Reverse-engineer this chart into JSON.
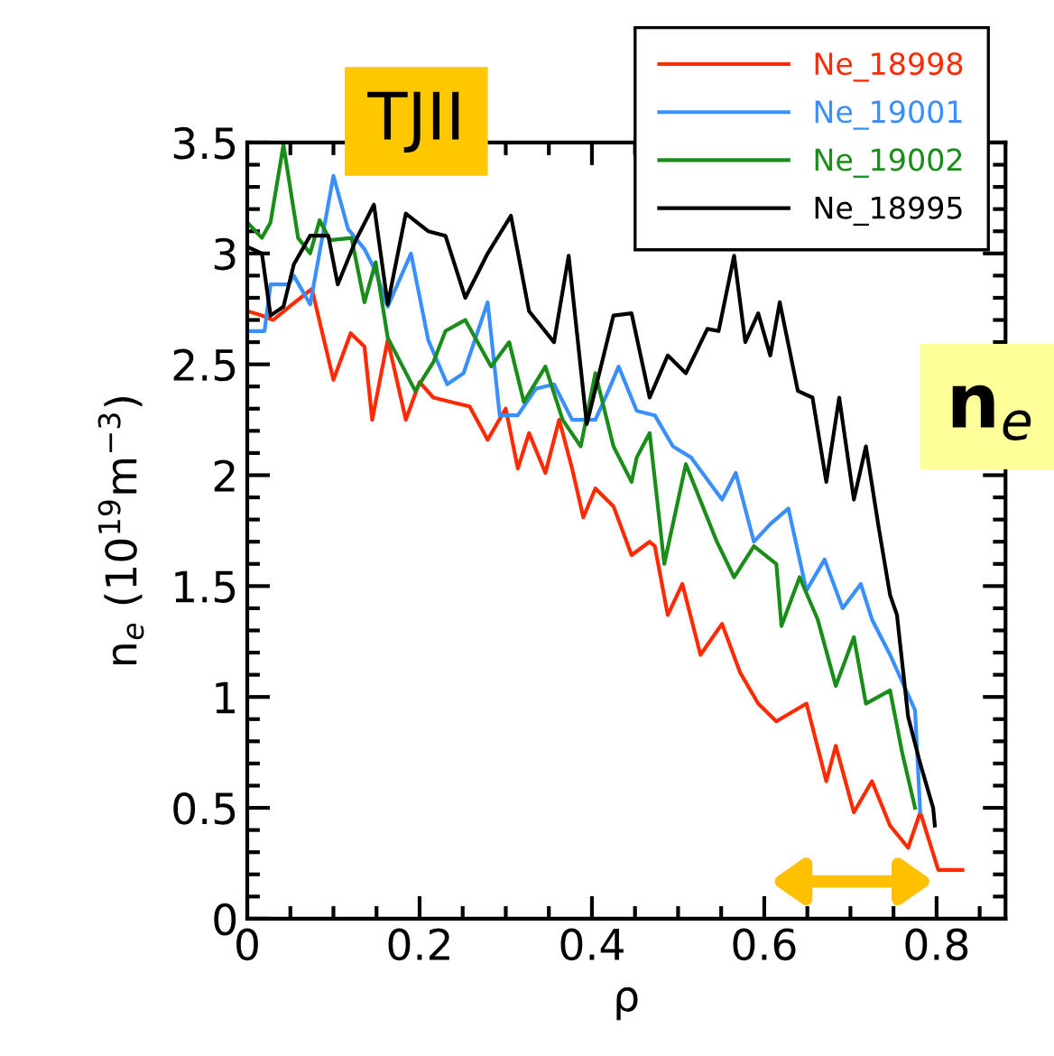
{
  "chart_data": {
    "type": "line",
    "xlabel": "ρ",
    "ylabel": "n$_{e}$ (10$^{19}$m$^{−3}$)",
    "annotations": [
      "TJII",
      "n$_{e}$"
    ],
    "xlim": [
      0,
      0.88
    ],
    "xticks": [
      0,
      0.2,
      0.4,
      0.6,
      0.8
    ],
    "ylim": [
      0,
      3.5
    ],
    "yticks": [
      0,
      0.5,
      1,
      1.5,
      2,
      2.5,
      3,
      3.5
    ],
    "legend": "top right",
    "grid": false,
    "line_style": "solid",
    "marker": "none",
    "series": [
      {
        "name": "Ne_18998",
        "color": "#ff2a00",
        "x": [
          0,
          0.017,
          0.03,
          0.052,
          0.075,
          0.1,
          0.12,
          0.136,
          0.145,
          0.163,
          0.184,
          0.2,
          0.216,
          0.237,
          0.258,
          0.279,
          0.3,
          0.314,
          0.327,
          0.346,
          0.362,
          0.377,
          0.39,
          0.404,
          0.425,
          0.446,
          0.467,
          0.473,
          0.488,
          0.505,
          0.526,
          0.551,
          0.572,
          0.593,
          0.614,
          0.649,
          0.672,
          0.683,
          0.704,
          0.725,
          0.746,
          0.767,
          0.781,
          0.802,
          0.83
        ],
        "values": [
          2.74,
          2.72,
          2.7,
          2.77,
          2.84,
          2.43,
          2.64,
          2.58,
          2.25,
          2.61,
          2.25,
          2.42,
          2.35,
          2.33,
          2.31,
          2.16,
          2.3,
          2.03,
          2.19,
          2.01,
          2.25,
          2.03,
          1.81,
          1.94,
          1.86,
          1.64,
          1.7,
          1.68,
          1.37,
          1.51,
          1.19,
          1.33,
          1.11,
          0.97,
          0.89,
          0.97,
          0.62,
          0.78,
          0.48,
          0.62,
          0.42,
          0.32,
          0.48,
          0.22,
          0.22
        ]
      },
      {
        "name": "Ne_19001",
        "color": "#3a8fff",
        "x": [
          0,
          0.02,
          0.027,
          0.048,
          0.054,
          0.073,
          0.1,
          0.117,
          0.136,
          0.149,
          0.163,
          0.19,
          0.21,
          0.232,
          0.251,
          0.279,
          0.293,
          0.314,
          0.335,
          0.356,
          0.377,
          0.404,
          0.419,
          0.431,
          0.452,
          0.473,
          0.494,
          0.515,
          0.551,
          0.567,
          0.588,
          0.607,
          0.628,
          0.649,
          0.67,
          0.691,
          0.712,
          0.725,
          0.746,
          0.775,
          0.781
        ],
        "values": [
          2.65,
          2.65,
          2.86,
          2.86,
          2.9,
          2.77,
          3.35,
          3.11,
          3.02,
          2.92,
          2.76,
          3.0,
          2.61,
          2.41,
          2.46,
          2.78,
          2.27,
          2.27,
          2.39,
          2.41,
          2.25,
          2.25,
          2.38,
          2.49,
          2.29,
          2.27,
          2.13,
          2.08,
          1.89,
          2.01,
          1.7,
          1.78,
          1.85,
          1.48,
          1.62,
          1.4,
          1.51,
          1.35,
          1.19,
          0.94,
          0.48
        ]
      },
      {
        "name": "Ne_19002",
        "color": "#1a8c1a",
        "x": [
          0,
          0.017,
          0.027,
          0.042,
          0.059,
          0.073,
          0.084,
          0.096,
          0.121,
          0.136,
          0.149,
          0.163,
          0.195,
          0.216,
          0.23,
          0.253,
          0.283,
          0.304,
          0.321,
          0.346,
          0.366,
          0.387,
          0.404,
          0.425,
          0.446,
          0.452,
          0.467,
          0.484,
          0.509,
          0.545,
          0.565,
          0.588,
          0.614,
          0.62,
          0.641,
          0.662,
          0.683,
          0.704,
          0.718,
          0.746,
          0.76,
          0.775
        ],
        "values": [
          3.14,
          3.07,
          3.14,
          3.49,
          3.07,
          3.0,
          3.15,
          3.06,
          3.07,
          2.78,
          2.96,
          2.62,
          2.38,
          2.51,
          2.65,
          2.7,
          2.49,
          2.6,
          2.33,
          2.49,
          2.25,
          2.13,
          2.46,
          2.13,
          1.97,
          2.08,
          2.19,
          1.6,
          2.05,
          1.7,
          1.54,
          1.68,
          1.6,
          1.32,
          1.54,
          1.35,
          1.05,
          1.27,
          0.97,
          1.03,
          0.75,
          0.5
        ]
      },
      {
        "name": "Ne_18995",
        "color": "#000000",
        "x": [
          0,
          0.017,
          0.027,
          0.042,
          0.054,
          0.073,
          0.094,
          0.105,
          0.126,
          0.147,
          0.163,
          0.184,
          0.21,
          0.23,
          0.253,
          0.279,
          0.306,
          0.327,
          0.356,
          0.373,
          0.394,
          0.425,
          0.446,
          0.467,
          0.488,
          0.509,
          0.534,
          0.547,
          0.565,
          0.578,
          0.593,
          0.607,
          0.618,
          0.639,
          0.656,
          0.672,
          0.687,
          0.704,
          0.718,
          0.733,
          0.746,
          0.754,
          0.767,
          0.781,
          0.796,
          0.798
        ],
        "values": [
          3.03,
          3.0,
          2.72,
          2.76,
          2.95,
          3.08,
          3.08,
          2.86,
          3.06,
          3.22,
          2.77,
          3.18,
          3.1,
          3.08,
          2.8,
          3.0,
          3.17,
          2.74,
          2.6,
          2.99,
          2.23,
          2.72,
          2.73,
          2.35,
          2.54,
          2.46,
          2.66,
          2.65,
          2.99,
          2.6,
          2.73,
          2.54,
          2.78,
          2.38,
          2.35,
          1.97,
          2.35,
          1.89,
          2.13,
          1.76,
          1.46,
          1.37,
          0.91,
          0.7,
          0.5,
          0.42
        ]
      }
    ]
  }
}
